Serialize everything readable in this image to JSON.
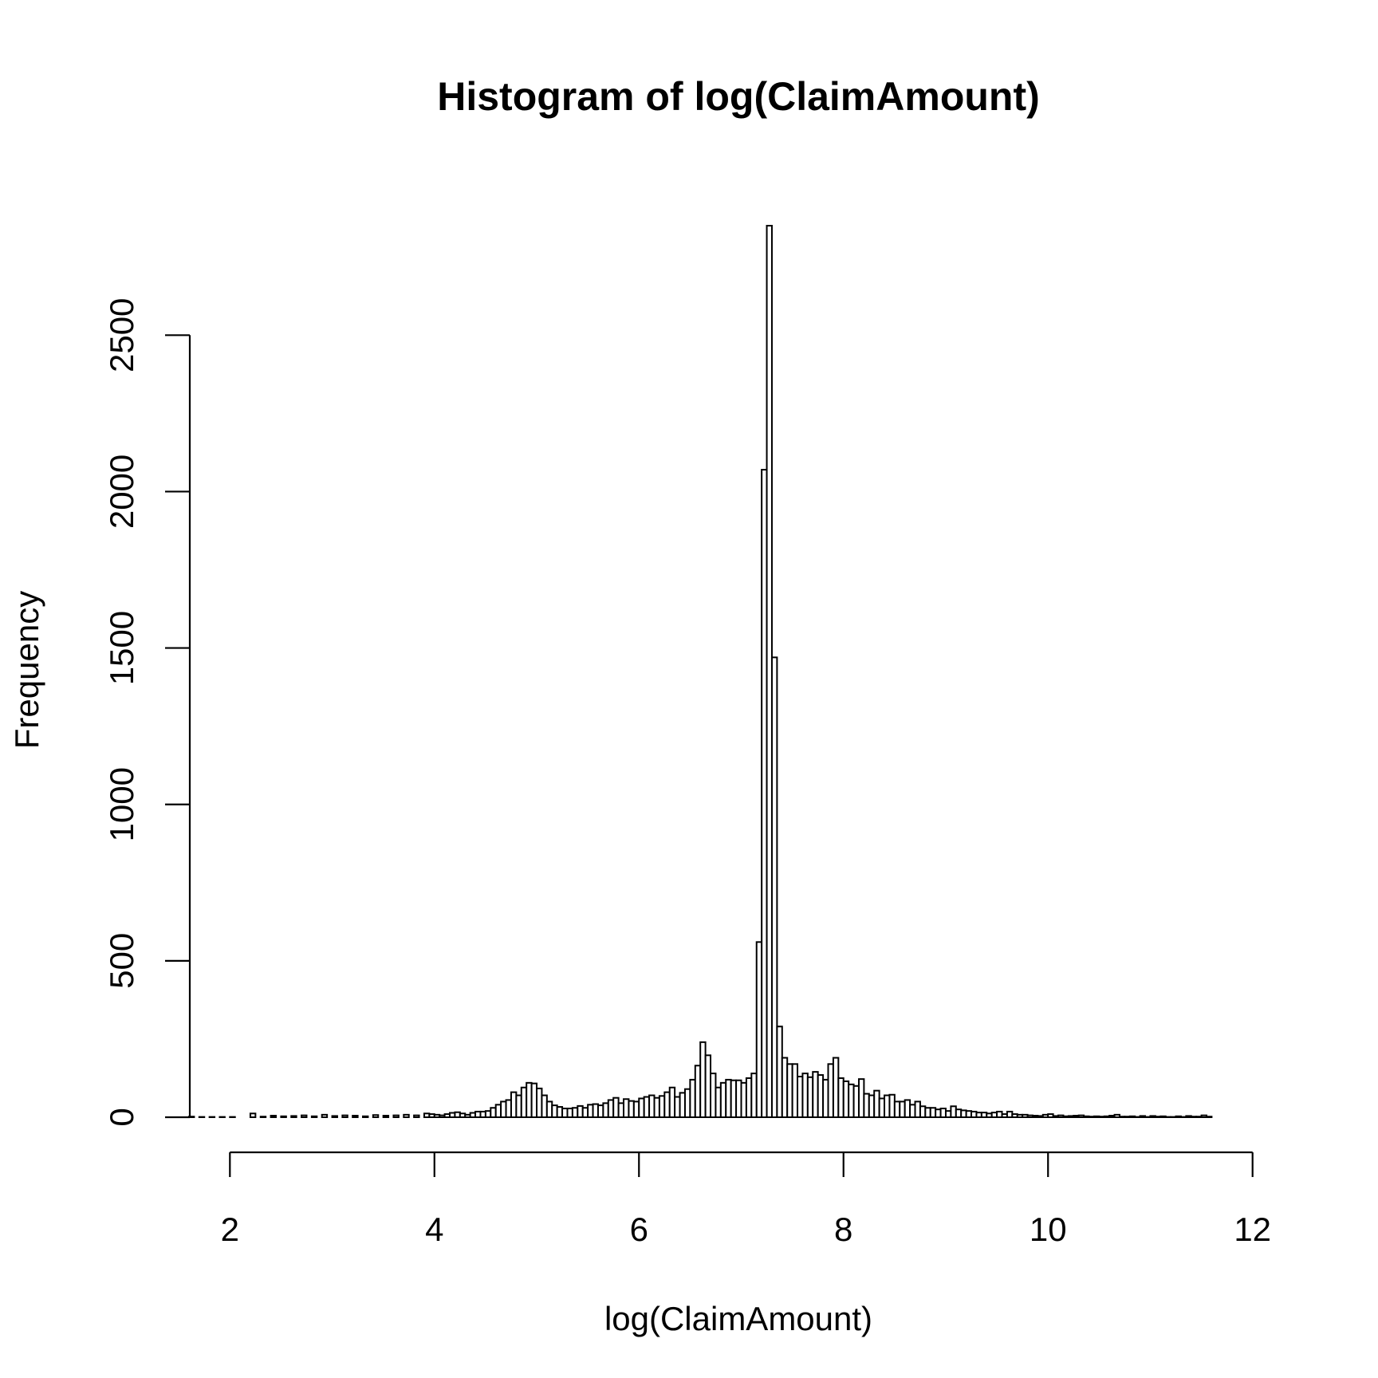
{
  "chart_data": {
    "type": "bar",
    "title": "Histogram of log(ClaimAmount)",
    "xlabel": "log(ClaimAmount)",
    "ylabel": "Frequency",
    "x_ticks": [
      2,
      4,
      6,
      8,
      10,
      12
    ],
    "y_ticks": [
      0,
      500,
      1000,
      1500,
      2000,
      2500
    ],
    "xlim": [
      1.6,
      12.4
    ],
    "ylim": [
      0,
      2850
    ],
    "bin_width": 0.05,
    "bin_start": 1.6,
    "grid": false,
    "legend": "none",
    "bar_fill": "#ffffff",
    "bar_stroke": "#000000",
    "values": [
      2,
      0,
      1,
      0,
      1,
      0,
      1,
      0,
      1,
      0,
      0,
      0,
      12,
      0,
      2,
      0,
      5,
      0,
      3,
      0,
      4,
      0,
      6,
      0,
      3,
      0,
      8,
      0,
      4,
      0,
      6,
      0,
      5,
      0,
      3,
      0,
      7,
      0,
      5,
      0,
      6,
      0,
      8,
      0,
      6,
      0,
      12,
      10,
      8,
      6,
      10,
      14,
      16,
      12,
      8,
      14,
      18,
      18,
      20,
      30,
      40,
      50,
      55,
      80,
      70,
      95,
      110,
      108,
      92,
      70,
      50,
      38,
      33,
      28,
      28,
      30,
      36,
      30,
      40,
      42,
      38,
      45,
      55,
      62,
      45,
      58,
      52,
      50,
      60,
      65,
      70,
      62,
      68,
      80,
      95,
      65,
      78,
      90,
      120,
      165,
      240,
      198,
      140,
      95,
      110,
      120,
      118,
      118,
      110,
      125,
      140,
      560,
      2070,
      2850,
      1470,
      290,
      190,
      170,
      170,
      130,
      140,
      128,
      145,
      135,
      120,
      170,
      190,
      125,
      115,
      105,
      100,
      122,
      75,
      70,
      85,
      60,
      70,
      72,
      50,
      50,
      55,
      40,
      50,
      35,
      30,
      30,
      25,
      28,
      20,
      35,
      25,
      22,
      20,
      18,
      15,
      15,
      12,
      15,
      18,
      10,
      18,
      10,
      8,
      8,
      6,
      5,
      4,
      8,
      10,
      4,
      6,
      3,
      4,
      5,
      6,
      3,
      2,
      3,
      2,
      3,
      5,
      8,
      2,
      2,
      3,
      1,
      4,
      1,
      4,
      2,
      3,
      1,
      1,
      3,
      1,
      4,
      2,
      2,
      6,
      2
    ]
  }
}
